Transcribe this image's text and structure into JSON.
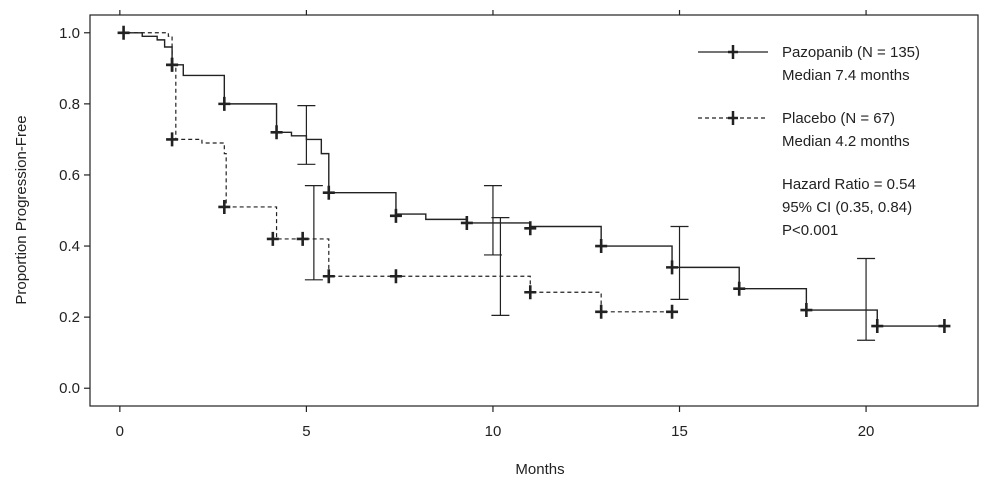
{
  "chart_data": {
    "type": "line",
    "xlabel": "Months",
    "ylabel": "Proportion Progression-Free",
    "xlim": [
      -0.8,
      23
    ],
    "ylim": [
      -0.05,
      1.05
    ],
    "xticks": [
      0,
      5,
      10,
      15,
      20
    ],
    "yticks": [
      0.0,
      0.2,
      0.4,
      0.6,
      0.8,
      1.0
    ],
    "xtick_labels": [
      "0",
      "5",
      "10",
      "15",
      "20"
    ],
    "ytick_labels": [
      "0.0",
      "0.2",
      "0.4",
      "0.6",
      "0.8",
      "1.0"
    ],
    "grid": false,
    "legend_position": "top-right",
    "series": [
      {
        "name": "Pazopanib (N = 135)",
        "median_label": "Median 7.4 months",
        "style": "solid",
        "color": "#222222",
        "steps": [
          [
            0,
            1.0
          ],
          [
            0.6,
            0.99
          ],
          [
            1.0,
            0.98
          ],
          [
            1.2,
            0.96
          ],
          [
            1.4,
            0.91
          ],
          [
            1.7,
            0.88
          ],
          [
            2.8,
            0.8
          ],
          [
            4.2,
            0.72
          ],
          [
            4.6,
            0.71
          ],
          [
            5.0,
            0.7
          ],
          [
            5.4,
            0.66
          ],
          [
            5.6,
            0.55
          ],
          [
            7.4,
            0.49
          ],
          [
            8.2,
            0.475
          ],
          [
            9.3,
            0.465
          ],
          [
            11.0,
            0.455
          ],
          [
            12.9,
            0.4
          ],
          [
            14.8,
            0.34
          ],
          [
            16.6,
            0.28
          ],
          [
            18.4,
            0.22
          ],
          [
            20.3,
            0.175
          ],
          [
            22.1,
            0.175
          ]
        ],
        "censor": [
          [
            0.1,
            1.0
          ],
          [
            1.4,
            0.91
          ],
          [
            2.8,
            0.8
          ],
          [
            4.2,
            0.72
          ],
          [
            5.6,
            0.55
          ],
          [
            7.4,
            0.485
          ],
          [
            9.3,
            0.465
          ],
          [
            11.0,
            0.45
          ],
          [
            12.9,
            0.4
          ],
          [
            14.8,
            0.34
          ],
          [
            16.6,
            0.28
          ],
          [
            18.4,
            0.22
          ],
          [
            20.3,
            0.175
          ],
          [
            22.1,
            0.175
          ]
        ],
        "error_bars": [
          {
            "x": 5.0,
            "low": 0.63,
            "high": 0.795
          },
          {
            "x": 10.0,
            "low": 0.375,
            "high": 0.57
          },
          {
            "x": 15.0,
            "low": 0.25,
            "high": 0.455
          },
          {
            "x": 20.0,
            "low": 0.135,
            "high": 0.365
          }
        ]
      },
      {
        "name": "Placebo (N = 67)",
        "median_label": "Median 4.2 months",
        "style": "dashed",
        "color": "#222222",
        "steps": [
          [
            0,
            1.0
          ],
          [
            1.3,
            0.99
          ],
          [
            1.4,
            0.91
          ],
          [
            1.5,
            0.7
          ],
          [
            2.2,
            0.69
          ],
          [
            2.8,
            0.66
          ],
          [
            2.85,
            0.51
          ],
          [
            4.2,
            0.42
          ],
          [
            5.0,
            0.42
          ],
          [
            5.6,
            0.315
          ],
          [
            11.0,
            0.27
          ],
          [
            12.9,
            0.215
          ],
          [
            14.8,
            0.215
          ]
        ],
        "censor": [
          [
            1.4,
            0.91
          ],
          [
            1.4,
            0.7
          ],
          [
            2.8,
            0.51
          ],
          [
            4.1,
            0.42
          ],
          [
            4.9,
            0.42
          ],
          [
            5.6,
            0.315
          ],
          [
            7.4,
            0.315
          ],
          [
            11.0,
            0.27
          ],
          [
            12.9,
            0.215
          ],
          [
            14.8,
            0.215
          ]
        ],
        "error_bars": [
          {
            "x": 5.2,
            "low": 0.305,
            "high": 0.57
          },
          {
            "x": 10.2,
            "low": 0.205,
            "high": 0.48
          }
        ]
      }
    ],
    "annotations": [
      "Hazard Ratio = 0.54",
      "95% CI (0.35, 0.84)",
      "P<0.001"
    ]
  }
}
